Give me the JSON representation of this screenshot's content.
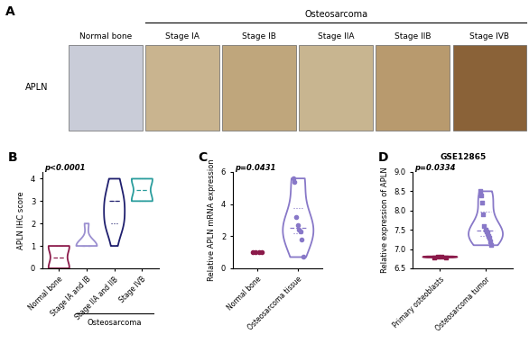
{
  "figure_a": {
    "panel_label": "A",
    "row_label": "APLN",
    "group_label": "Osteosarcoma",
    "columns": [
      "Normal bone",
      "Stage IA",
      "Stage IB",
      "Stage IIA",
      "Stage IIB",
      "Stage IVB"
    ],
    "colors": [
      "#c9ccd8",
      "#c9b48f",
      "#bfa67c",
      "#c8b590",
      "#b89a6e",
      "#8a6238"
    ]
  },
  "chart_data": [
    {
      "type": "violin",
      "panel_label": "B",
      "annotation": "p<0.0001",
      "ylabel": "APLN IHC score",
      "group_label": "Osteosarcoma",
      "categories": [
        "Normal bone",
        "Stage IA and IB",
        "Stage IIA and IIB",
        "Stage IVB"
      ],
      "values": [
        [
          0,
          0,
          0,
          1,
          1,
          1
        ],
        [
          1,
          1,
          1,
          1,
          1,
          2
        ],
        [
          1,
          2,
          2,
          2,
          3,
          3,
          3,
          4,
          4,
          2,
          3
        ],
        [
          3,
          3,
          4,
          4,
          3,
          4
        ]
      ],
      "colors": [
        "#8b1a4a",
        "#9b8fd0",
        "#1f1f6e",
        "#2a9d9d"
      ],
      "ylim": [
        0,
        4.3
      ],
      "yticks": [
        0,
        1,
        2,
        3,
        4
      ]
    },
    {
      "type": "violin",
      "panel_label": "C",
      "annotation": "p=0.0431",
      "ylabel": "Relative APLN mRNA expression",
      "categories": [
        "Normal bone",
        "Osteosarcoma tissue"
      ],
      "values": [
        [
          1,
          1,
          1,
          1
        ],
        [
          5.6,
          5.4,
          3.2,
          2.7,
          2.4,
          2.3,
          1.8,
          0.7
        ]
      ],
      "colors": [
        "#8b1a4a",
        "#8878c8"
      ],
      "marker": "circle",
      "ylim": [
        0,
        6
      ],
      "yticks": [
        0,
        2,
        4,
        6
      ]
    },
    {
      "type": "violin",
      "panel_label": "D",
      "title": "GSE12865",
      "annotation": "p=0.0334",
      "ylabel": "Relative expression of APLN",
      "categories": [
        "Primary osteoblasts",
        "Osteosarcoma tumor"
      ],
      "values": [
        [
          6.78,
          6.8,
          6.81,
          6.79
        ],
        [
          8.5,
          8.4,
          8.2,
          7.9,
          7.6,
          7.5,
          7.45,
          7.4,
          7.35,
          7.3,
          7.2,
          7.1
        ]
      ],
      "colors": [
        "#8b1a4a",
        "#8878c8"
      ],
      "marker": "square",
      "ylim": [
        6.5,
        9.0
      ],
      "yticks": [
        {
          "value": 6.5,
          "label": "6.5"
        },
        {
          "value": 7,
          "label": "7.0"
        },
        {
          "value": 7.5,
          "label": "7.5"
        },
        {
          "value": 8,
          "label": "8.0"
        },
        {
          "value": 8.5,
          "label": "8.5"
        },
        {
          "value": 9,
          "label": "9.0"
        }
      ]
    }
  ]
}
